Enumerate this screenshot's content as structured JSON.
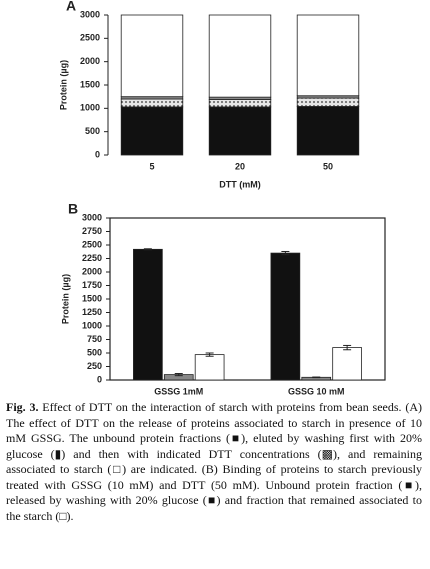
{
  "chart_data": [
    {
      "type": "bar",
      "stacked": true,
      "panel": "A",
      "ylabel": "Protein (µg)",
      "xlabel": "DTT (mM)",
      "categories": [
        "5",
        "20",
        "50"
      ],
      "series": [
        {
          "color": "#111111",
          "values": [
            1030,
            1030,
            1040
          ]
        },
        {
          "color": "#e0e0e0",
          "pattern": "dots",
          "values": [
            170,
            160,
            180
          ]
        },
        {
          "color": "#888888",
          "values": [
            50,
            50,
            50
          ]
        },
        {
          "color": "#ffffff",
          "values": [
            1750,
            1760,
            1730
          ]
        }
      ],
      "ylim": [
        0,
        3000
      ],
      "yticks": [
        0,
        500,
        1000,
        1500,
        2000,
        2500,
        3000
      ],
      "frame": false
    },
    {
      "type": "bar",
      "stacked": false,
      "panel": "B",
      "ylabel": "Protein (µg)",
      "categories": [
        "GSSG 1mM",
        "GSSG 10 mM"
      ],
      "series": [
        {
          "color": "#111111",
          "values": [
            2420,
            2350
          ],
          "errors": [
            10,
            30
          ]
        },
        {
          "color": "#888888",
          "values": [
            100,
            50
          ],
          "errors": [
            20,
            5
          ]
        },
        {
          "color": "#ffffff",
          "values": [
            470,
            600
          ],
          "errors": [
            30,
            40
          ]
        }
      ],
      "ylim": [
        0,
        3000
      ],
      "yticks": [
        0,
        250,
        500,
        750,
        1000,
        1250,
        1500,
        1750,
        2000,
        2250,
        2500,
        2750,
        3000
      ],
      "frame": true
    }
  ],
  "caption": {
    "label": "Fig. 3.",
    "text": "Effect of DTT on the interaction of starch with proteins from bean seeds. (A) The effect of DTT on the release of proteins associated to starch in presence of 10 mM GSSG. The unbound protein fractions (■), eluted by washing first with 20% glucose (▮) and then with indicated DTT concentrations (▩), and remaining associated to starch (□) are indicated. (B) Binding of proteins to starch previously treated with GSSG (10 mM) and DTT (50 mM). Unbound protein fraction (■), released by washing with 20% glucose (■) and fraction that remained associated to the starch (□)."
  }
}
